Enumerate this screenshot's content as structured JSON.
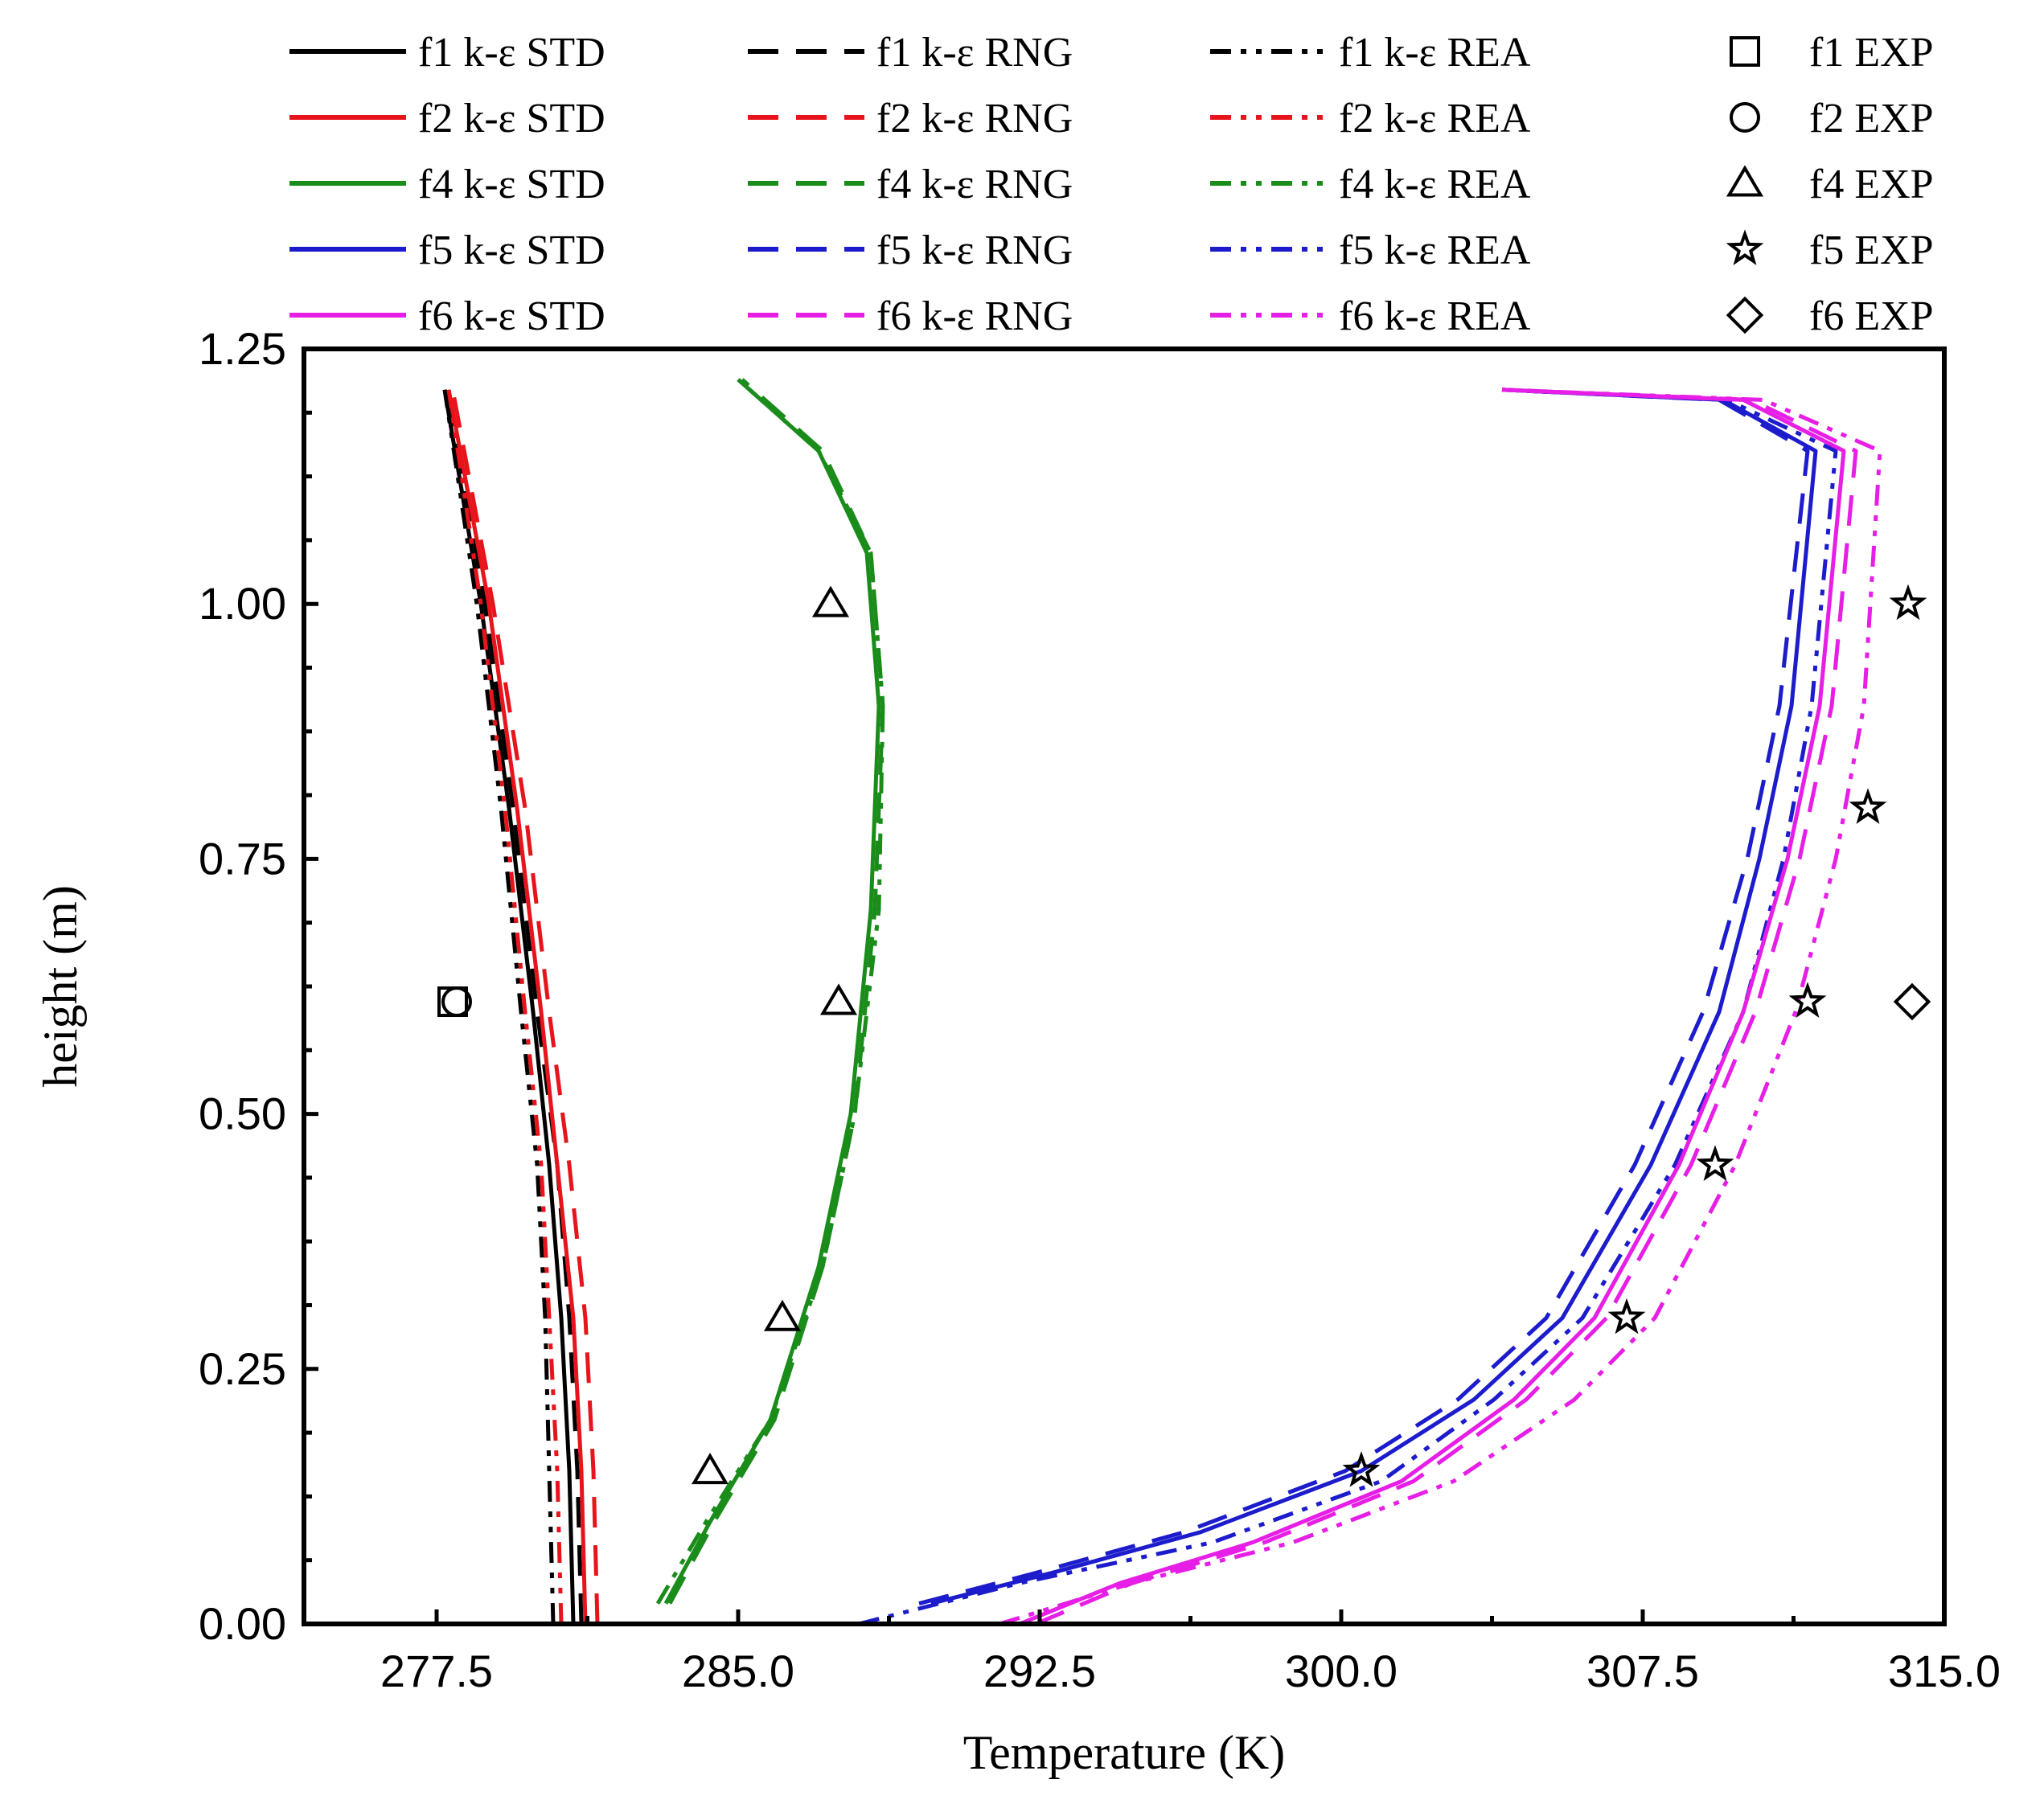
{
  "chart_data": {
    "type": "line",
    "title": "",
    "xlabel": "Temperature (K)",
    "ylabel": "height (m)",
    "xlim": [
      274.2,
      315.0
    ],
    "ylim": [
      0.0,
      1.25
    ],
    "xticks": [
      277.5,
      285.0,
      292.5,
      300.0,
      307.5,
      315.0
    ],
    "xtick_labels": [
      "277.5",
      "285.0",
      "292.5",
      "300.0",
      "307.5",
      "315.0"
    ],
    "yticks": [
      0.0,
      0.25,
      0.5,
      0.75,
      1.0,
      1.25
    ],
    "ytick_labels": [
      "0.00",
      "0.25",
      "0.50",
      "0.75",
      "1.00",
      "1.25"
    ],
    "grid": false,
    "legend_position": "top",
    "series": [
      {
        "name": "f1 k-ε STD",
        "color": "#000000",
        "dash": "solid",
        "x": [
          280.9,
          280.8,
          280.6,
          280.3,
          279.9,
          279.3,
          278.6,
          277.7
        ],
        "y": [
          0.0,
          0.15,
          0.3,
          0.45,
          0.6,
          0.8,
          1.0,
          1.21
        ]
      },
      {
        "name": "f1 k-ε RNG",
        "color": "#000000",
        "dash": "dashed",
        "x": [
          281.1,
          281.0,
          280.8,
          280.5,
          280.0,
          279.4,
          278.7,
          277.8
        ],
        "y": [
          0.0,
          0.15,
          0.3,
          0.45,
          0.6,
          0.8,
          1.0,
          1.21
        ]
      },
      {
        "name": "f1 k-ε REA",
        "color": "#000000",
        "dash": "dashdotdot",
        "x": [
          280.4,
          280.3,
          280.2,
          280.0,
          279.6,
          279.1,
          278.5,
          277.7
        ],
        "y": [
          0.0,
          0.15,
          0.3,
          0.45,
          0.6,
          0.8,
          1.0,
          1.21
        ]
      },
      {
        "name": "f2 k-ε STD",
        "color": "#e8141c",
        "dash": "solid",
        "x": [
          281.2,
          281.1,
          280.9,
          280.5,
          280.1,
          279.5,
          278.8,
          277.8
        ],
        "y": [
          0.0,
          0.15,
          0.3,
          0.45,
          0.6,
          0.8,
          1.0,
          1.21
        ]
      },
      {
        "name": "f2 k-ε RNG",
        "color": "#e8141c",
        "dash": "dashed",
        "x": [
          281.5,
          281.4,
          281.2,
          280.8,
          280.3,
          279.7,
          278.9,
          277.9
        ],
        "y": [
          0.0,
          0.15,
          0.3,
          0.45,
          0.6,
          0.8,
          1.0,
          1.21
        ]
      },
      {
        "name": "f2 k-ε REA",
        "color": "#e8141c",
        "dash": "dashdotdot",
        "x": [
          280.6,
          280.5,
          280.3,
          280.1,
          279.7,
          279.2,
          278.6,
          277.8
        ],
        "y": [
          0.0,
          0.15,
          0.3,
          0.45,
          0.6,
          0.8,
          1.0,
          1.21
        ]
      },
      {
        "name": "f4 k-ε STD",
        "color": "#1a8c1a",
        "dash": "solid",
        "x": [
          283.2,
          284.3,
          285.8,
          287.0,
          287.8,
          288.3,
          288.5,
          288.2,
          287.0,
          285.0
        ],
        "y": [
          0.02,
          0.1,
          0.2,
          0.35,
          0.5,
          0.7,
          0.9,
          1.05,
          1.15,
          1.22
        ]
      },
      {
        "name": "f4 k-ε RNG",
        "color": "#1a8c1a",
        "dash": "dashed",
        "x": [
          283.3,
          284.4,
          285.9,
          287.1,
          287.9,
          288.4,
          288.6,
          288.3,
          287.1,
          285.1
        ],
        "y": [
          0.02,
          0.1,
          0.2,
          0.35,
          0.5,
          0.7,
          0.9,
          1.05,
          1.15,
          1.22
        ]
      },
      {
        "name": "f4 k-ε REA",
        "color": "#1a8c1a",
        "dash": "dashdotdot",
        "x": [
          283.0,
          284.2,
          285.8,
          287.1,
          287.9,
          288.5,
          288.6,
          288.3,
          287.0,
          285.0
        ],
        "y": [
          0.02,
          0.1,
          0.2,
          0.35,
          0.5,
          0.7,
          0.9,
          1.05,
          1.15,
          1.22
        ]
      },
      {
        "name": "f5 k-ε STD",
        "color": "#1c1ccc",
        "dash": "solid",
        "x": [
          289.8,
          292.8,
          296.5,
          300.5,
          303.3,
          305.5,
          307.7,
          309.4,
          310.4,
          311.2,
          311.8,
          309.5,
          304.0
        ],
        "y": [
          0.02,
          0.05,
          0.09,
          0.15,
          0.22,
          0.3,
          0.45,
          0.6,
          0.75,
          0.9,
          1.15,
          1.2,
          1.21
        ]
      },
      {
        "name": "f5 k-ε RNG",
        "color": "#1c1ccc",
        "dash": "dashed",
        "x": [
          289.5,
          292.4,
          296.1,
          300.1,
          302.9,
          305.1,
          307.3,
          309.0,
          310.1,
          310.9,
          311.6,
          309.4,
          304.0
        ],
        "y": [
          0.02,
          0.05,
          0.09,
          0.15,
          0.22,
          0.3,
          0.45,
          0.6,
          0.75,
          0.9,
          1.15,
          1.2,
          1.21
        ]
      },
      {
        "name": "f5 k-ε REA",
        "color": "#1c1ccc",
        "dash": "dashdotdot",
        "x": [
          288.0,
          292.0,
          296.8,
          301.0,
          303.8,
          306.0,
          308.3,
          310.0,
          311.0,
          311.7,
          312.3,
          309.6,
          304.0
        ],
        "y": [
          0.0,
          0.04,
          0.08,
          0.14,
          0.22,
          0.3,
          0.45,
          0.6,
          0.75,
          0.9,
          1.15,
          1.2,
          1.21
        ]
      },
      {
        "name": "f6 k-ε STD",
        "color": "#e61ee6",
        "dash": "solid",
        "x": [
          292.0,
          294.5,
          297.8,
          301.5,
          304.3,
          306.3,
          308.4,
          310.0,
          311.1,
          311.9,
          312.5,
          310.0,
          304.0
        ],
        "y": [
          0.0,
          0.04,
          0.08,
          0.14,
          0.22,
          0.3,
          0.45,
          0.6,
          0.75,
          0.9,
          1.15,
          1.2,
          1.21
        ]
      },
      {
        "name": "f6 k-ε RNG",
        "color": "#e61ee6",
        "dash": "dashed",
        "x": [
          292.4,
          294.8,
          298.1,
          301.8,
          304.6,
          306.6,
          308.7,
          310.3,
          311.4,
          312.2,
          312.8,
          310.2,
          304.0
        ],
        "y": [
          0.0,
          0.04,
          0.08,
          0.14,
          0.22,
          0.3,
          0.45,
          0.6,
          0.75,
          0.9,
          1.15,
          1.2,
          1.21
        ]
      },
      {
        "name": "f6 k-ε REA",
        "color": "#e61ee6",
        "dash": "dashdotdot",
        "x": [
          291.5,
          294.8,
          298.8,
          302.8,
          305.8,
          307.8,
          309.8,
          311.3,
          312.3,
          313.0,
          313.4,
          310.5,
          304.0
        ],
        "y": [
          0.0,
          0.04,
          0.08,
          0.14,
          0.22,
          0.3,
          0.45,
          0.6,
          0.75,
          0.9,
          1.15,
          1.2,
          1.21
        ]
      }
    ],
    "experimental": [
      {
        "name": "f1 EXP",
        "marker": "square",
        "points": [
          [
            277.9,
            0.61
          ]
        ]
      },
      {
        "name": "f2 EXP",
        "marker": "circle",
        "points": [
          [
            278.0,
            0.61
          ]
        ]
      },
      {
        "name": "f4 EXP",
        "marker": "triangle",
        "points": [
          [
            287.3,
            1.0
          ],
          [
            287.5,
            0.61
          ],
          [
            286.1,
            0.3
          ],
          [
            284.3,
            0.15
          ]
        ]
      },
      {
        "name": "f5 EXP",
        "marker": "star",
        "points": [
          [
            314.1,
            1.0
          ],
          [
            313.1,
            0.8
          ],
          [
            311.6,
            0.61
          ],
          [
            309.3,
            0.45
          ],
          [
            307.1,
            0.3
          ],
          [
            300.5,
            0.15
          ]
        ]
      },
      {
        "name": "f6 EXP",
        "marker": "diamond",
        "points": [
          [
            314.2,
            0.61
          ]
        ]
      }
    ],
    "legend": [
      [
        "f1 k-ε STD",
        "f1 k-ε RNG",
        "f1 k-ε REA",
        "f1 EXP"
      ],
      [
        "f2 k-ε STD",
        "f2 k-ε RNG",
        "f2 k-ε REA",
        "f2 EXP"
      ],
      [
        "f4 k-ε STD",
        "f4 k-ε RNG",
        "f4 k-ε REA",
        "f4 EXP"
      ],
      [
        "f5 k-ε STD",
        "f5 k-ε RNG",
        "f5 k-ε REA",
        "f5 EXP"
      ],
      [
        "f6 k-ε  STD",
        "f6 k-ε RNG",
        "f6 k-ε REA",
        "f6 EXP"
      ]
    ]
  }
}
